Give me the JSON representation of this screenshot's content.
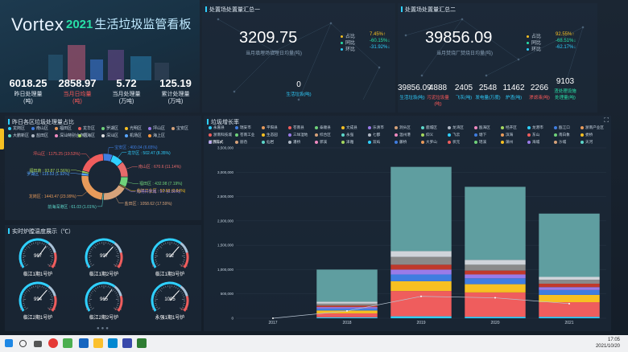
{
  "brand": {
    "logo": "Vortex",
    "year": "2021",
    "title": "生活垃圾监管看板"
  },
  "kpis": [
    {
      "value": "6018.25",
      "label": "昨日处理量\n(吨)",
      "style": "white"
    },
    {
      "value": "2858.97",
      "label": "当月日均量\n(吨)",
      "style": "red"
    },
    {
      "value": "5.72",
      "label": "当月处理量\n(万吨)",
      "style": "white"
    },
    {
      "value": "125.19",
      "label": "累计处理量\n(万吨)",
      "style": "white"
    }
  ],
  "summary1": {
    "title": "处置场处置量汇总一",
    "big": "3209.75",
    "sub": "当月填埋场填埋日均量(吨)",
    "ratios": [
      {
        "name": "占比",
        "value": "7.45%↑",
        "color": "#f7c022"
      },
      {
        "name": "同比",
        "value": "-60.15%↓",
        "color": "#28e0a7"
      },
      {
        "name": "环比",
        "value": "-31.92%↓",
        "color": "#2fd0ff"
      }
    ],
    "mini_value": "0",
    "mini_label": "生活垃圾(吨)"
  },
  "summary2": {
    "title": "处置场处置量汇总二",
    "big": "39856.09",
    "sub": "当月焚烧厂焚烧日均量(吨)",
    "ratios": [
      {
        "name": "占比",
        "value": "92.55%↑",
        "color": "#f7c022"
      },
      {
        "name": "同比",
        "value": "-68.51%↓",
        "color": "#28e0a7"
      },
      {
        "name": "环比",
        "value": "-62.17%↓",
        "color": "#2fd0ff"
      }
    ],
    "minis": [
      {
        "value": "39856.09",
        "label": "生活垃圾(吨)",
        "style": ""
      },
      {
        "value": "4888",
        "label": "污泥垃圾量(吨)",
        "style": "red"
      },
      {
        "value": "2405",
        "label": "飞灰(吨)",
        "style": ""
      },
      {
        "value": "2548",
        "label": "发电量(万度)",
        "style": ""
      },
      {
        "value": "11462",
        "label": "炉渣(吨)",
        "style": ""
      },
      {
        "value": "2266",
        "label": "渗滤液(吨)",
        "style": "red"
      },
      {
        "value": "9103",
        "label": "渣处理设施\n处理量(吨)",
        "style": "green"
      }
    ]
  },
  "pie": {
    "title": "昨日各区垃圾处理量占比",
    "legend": [
      "龙岗区",
      "南山区",
      "福田区",
      "龙华区",
      "罗湖区",
      "光明区",
      "坪山区",
      "宝安区",
      "大鹏新区",
      "盐田区",
      "深汕特别合作区",
      "前海区",
      "深汕区",
      "机场区",
      "海上区"
    ],
    "colors": [
      "#2fd0ff",
      "#3f7de0",
      "#e89a5a",
      "#ef5d5d",
      "#6fd27a",
      "#f7c022",
      "#9a7be8",
      "#d6a27a",
      "#5dd6c9",
      "#b0b8c4",
      "#ef8ac0",
      "#a4d65e",
      "#e0e0e0",
      "#58a6ff",
      "#ff9a40"
    ],
    "slices": [
      {
        "label": "龙华区 : 502.47 (8.35%)",
        "value": 502.47,
        "color": "#2fd0ff"
      },
      {
        "label": "南山区 : 670.6 (11.14%)",
        "value": 670.6,
        "color": "#e86b6b"
      },
      {
        "label": "福田区 : 432.98 (7.19%)",
        "value": 432.98,
        "color": "#6fd27a"
      },
      {
        "label": "临江工业区 : 50.69 (0.84%)",
        "value": 50.69,
        "color": "#f7c022"
      },
      {
        "label": "光明科学城 : 9.7 (0.16%)",
        "value": 9.7,
        "color": "#9a7be8"
      },
      {
        "label": "盐田区 : 1058.62 (17.59%)",
        "value": 1058.62,
        "color": "#d6a27a"
      },
      {
        "label": "前海深港区 : 61.03 (1.01%)",
        "value": 61.03,
        "color": "#5dd6c9"
      },
      {
        "label": "龙岗区 : 1443.47 (23.99%)",
        "value": 1443.47,
        "color": "#e89a5a"
      },
      {
        "label": "罗湖区 : 115.53 (1.92%)",
        "value": 115.53,
        "color": "#58a6ff"
      },
      {
        "label": "福田南 : 93.87 (1.56%)",
        "value": 93.87,
        "color": "#a4d65e"
      },
      {
        "label": "坪山区 : 1175.25 (19.53%)",
        "value": 1175.25,
        "color": "#ef5d5d"
      },
      {
        "label": "宝安区 : 400.04 (6.65%)",
        "value": 400.04,
        "color": "#3f7de0"
      }
    ]
  },
  "gauges_panel": {
    "title": "实时炉膛温度展示（℃）",
    "min_label": "0",
    "max_label": "1500",
    "gauges": [
      {
        "value": 967,
        "name": "临江1期1号炉"
      },
      {
        "value": 997,
        "name": "临江1期2号炉"
      },
      {
        "value": 992,
        "name": "临江1期3号炉"
      },
      {
        "value": 994,
        "name": "临江2期1号炉"
      },
      {
        "value": 965,
        "name": "临江2期2号炉"
      },
      {
        "value": 1005,
        "name": "永强1期1号炉"
      }
    ]
  },
  "bars_panel": {
    "title": "垃圾增长率",
    "legend": [
      "永嘉县",
      "瑞安市",
      "平阳县",
      "苍南县",
      "泰顺县",
      "文成县",
      "乐清市",
      "洞头区",
      "鹿城区",
      "龙湾区",
      "瓯海区",
      "经开区",
      "龙港市",
      "瓯江口",
      "浙南产业区",
      "浙南科技城",
      "苍南工业",
      "生态园",
      "三垟湿地",
      "综合区",
      "永强",
      "七都",
      "温州港",
      "仰义",
      "飞云",
      "塘下",
      "滨海",
      "东山",
      "南白象",
      "娄桥",
      "茶山",
      "丽岙",
      "仙岩",
      "潘桥",
      "郭溪",
      "泽雅",
      "双屿",
      "藤桥",
      "大罗山",
      "状元",
      "瑶溪",
      "蒲州",
      "海城",
      "沙城",
      "天河"
    ],
    "legend_colors": [
      "#2fd0ff",
      "#3f7de0",
      "#e89a5a",
      "#ef5d5d",
      "#6fd27a",
      "#f7c022",
      "#9a7be8",
      "#d6a27a",
      "#5dd6c9",
      "#b0b8c4",
      "#ef8ac0",
      "#a4d65e"
    ],
    "mode_label": "显示方式",
    "expand_icon": "⛶"
  },
  "chart_data": {
    "type": "bar",
    "stacked": true,
    "categories": [
      "2017",
      "2018",
      "2019",
      "2020",
      "2021"
    ],
    "ylim": [
      0,
      3500000
    ],
    "yticks": [
      "0",
      "500,000",
      "1,000,000",
      "1,500,000",
      "2,000,000",
      "2,500,000",
      "3,000,000",
      "3,500,000"
    ],
    "series": [
      {
        "color": "#2fd0ff",
        "values": [
          0,
          20000,
          40000,
          30000,
          30000
        ]
      },
      {
        "color": "#ef5d5d",
        "values": [
          0,
          80000,
          520000,
          500000,
          300000
        ]
      },
      {
        "color": "#f7c022",
        "values": [
          0,
          60000,
          200000,
          170000,
          150000
        ]
      },
      {
        "color": "#3f7de0",
        "values": [
          0,
          40000,
          140000,
          120000,
          100000
        ]
      },
      {
        "color": "#9a7be8",
        "values": [
          0,
          30000,
          100000,
          80000,
          60000
        ]
      },
      {
        "color": "#c0392b",
        "values": [
          0,
          30000,
          100000,
          80000,
          70000
        ]
      },
      {
        "color": "#8a8a8a",
        "values": [
          0,
          40000,
          160000,
          120000,
          80000
        ]
      },
      {
        "color": "#d0d4da",
        "values": [
          0,
          40000,
          120000,
          100000,
          60000
        ]
      },
      {
        "color": "#5f9ea0",
        "values": [
          0,
          660000,
          1730000,
          1500000,
          1300000
        ]
      }
    ],
    "line": {
      "color": "#b8c4d2",
      "values": [
        0,
        150000,
        450000,
        420000,
        300000
      ]
    }
  },
  "taskbar": {
    "time": "17:05",
    "date": "2021/10/20"
  }
}
